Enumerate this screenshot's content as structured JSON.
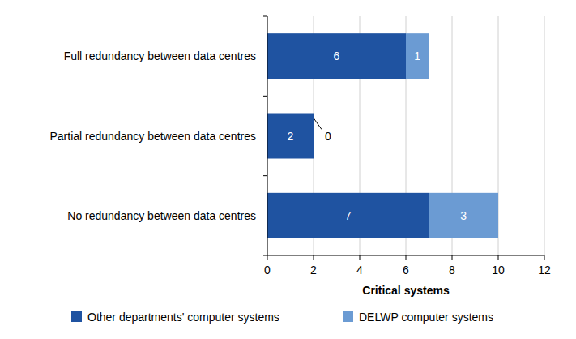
{
  "chart_data": {
    "type": "bar",
    "orientation": "horizontal",
    "stacked": true,
    "categories": [
      "Full redundancy between data centres",
      "Partial redundancy between data centres",
      "No redundancy between data centres"
    ],
    "series": [
      {
        "name": "Other departments' computer systems",
        "color": "#1f53a1",
        "values": [
          6,
          2,
          7
        ]
      },
      {
        "name": "DELWP computer systems",
        "color": "#6b9bd3",
        "values": [
          1,
          0,
          3
        ]
      }
    ],
    "x_label": "Critical systems",
    "xlim": [
      0,
      12
    ],
    "xticks": [
      0,
      2,
      4,
      6,
      8,
      10,
      12
    ],
    "grid": true,
    "data_labels": true,
    "legend": "bottom"
  }
}
